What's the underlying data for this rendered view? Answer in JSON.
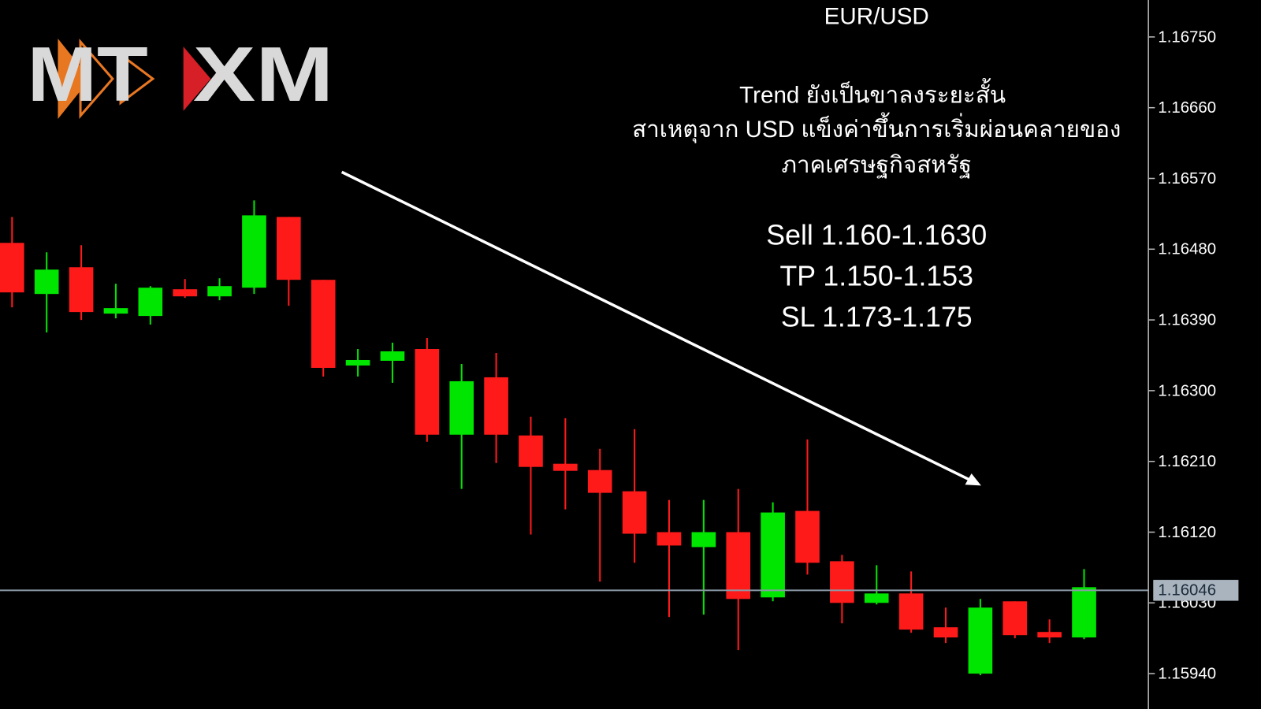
{
  "chart_data": {
    "type": "candlestick",
    "title": "EUR/USD",
    "logo": [
      "MT",
      "XM"
    ],
    "annotations": [
      "Trend ยังเป็นขาลงระยะสั้น",
      "สาเหตุจาก USD แข็งค่าขึ้นการเริ่มผ่อนคลายของ",
      "ภาคเศรษฐกิจสหรัฐ"
    ],
    "levels": [
      "Sell 1.160-1.1630",
      "TP 1.150-1.153",
      "SL 1.173-1.175"
    ],
    "open": [
      1.16488,
      1.16423,
      1.16457,
      1.16398,
      1.16395,
      1.16429,
      1.1642,
      1.16431,
      1.16521,
      1.16441,
      1.16332,
      1.16338,
      1.16353,
      1.16244,
      1.16317,
      1.16243,
      1.16207,
      1.16199,
      1.16172,
      1.1612,
      1.16101,
      1.1612,
      1.16037,
      1.16147,
      1.16083,
      1.1603,
      1.16042,
      1.15999,
      1.1594,
      1.16032,
      1.15993,
      1.15986
    ],
    "high": [
      1.16521,
      1.16476,
      1.16485,
      1.16436,
      1.16433,
      1.16442,
      1.16443,
      1.16542,
      1.16521,
      1.16441,
      1.16353,
      1.16361,
      1.16367,
      1.16334,
      1.16348,
      1.16267,
      1.16265,
      1.16226,
      1.16251,
      1.16161,
      1.16161,
      1.16175,
      1.16158,
      1.16238,
      1.16091,
      1.16078,
      1.1607,
      1.16024,
      1.16035,
      1.16032,
      1.16009,
      1.16073
    ],
    "low": [
      1.16406,
      1.16374,
      1.1639,
      1.16392,
      1.16384,
      1.16418,
      1.16415,
      1.16423,
      1.16408,
      1.16318,
      1.16318,
      1.1631,
      1.16235,
      1.16175,
      1.16208,
      1.16117,
      1.16149,
      1.16057,
      1.16081,
      1.16012,
      1.16015,
      1.1597,
      1.16032,
      1.16066,
      1.16004,
      1.16028,
      1.15992,
      1.15979,
      1.15938,
      1.15985,
      1.15979,
      1.15984
    ],
    "close": [
      1.16425,
      1.16454,
      1.164,
      1.16405,
      1.16431,
      1.1642,
      1.16433,
      1.16523,
      1.16441,
      1.16329,
      1.16339,
      1.1635,
      1.16244,
      1.16312,
      1.16244,
      1.16203,
      1.16198,
      1.1617,
      1.16118,
      1.16103,
      1.1612,
      1.16035,
      1.16145,
      1.16081,
      1.1603,
      1.16042,
      1.15996,
      1.15986,
      1.16024,
      1.15989,
      1.15986,
      1.1605
    ],
    "up_color": "#00e600",
    "down_color": "#ff1a1a",
    "current_price": 1.16046,
    "ylim": [
      1.15895,
      1.16797
    ],
    "yticks": [
      {
        "value": 1.1675,
        "label": "1.16750"
      },
      {
        "value": 1.1666,
        "label": "1.16660"
      },
      {
        "value": 1.1657,
        "label": "1.16570"
      },
      {
        "value": 1.1648,
        "label": "1.16480"
      },
      {
        "value": 1.1639,
        "label": "1.16390"
      },
      {
        "value": 1.163,
        "label": "1.16300"
      },
      {
        "value": 1.1621,
        "label": "1.16210"
      },
      {
        "value": 1.1612,
        "label": "1.16120"
      },
      {
        "value": 1.1603,
        "label": "1.16030"
      },
      {
        "value": 1.1594,
        "label": "1.15940"
      }
    ]
  }
}
